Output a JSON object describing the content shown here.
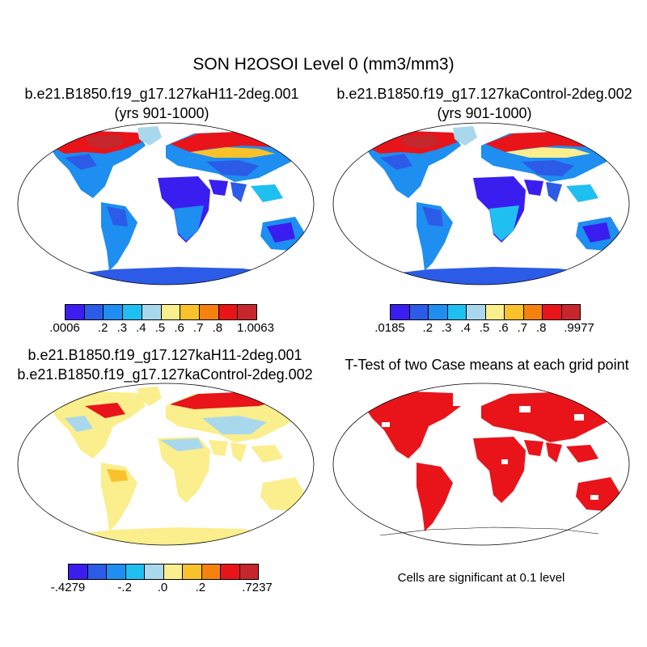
{
  "title": "SON H2OSOI Level 0 (mm3/mm3)",
  "panels": [
    {
      "title1": "b.e21.B1850.f19_g17.127kaH11-2deg.001",
      "title2": "(yrs 901-1000)"
    },
    {
      "title1": "b.e21.B1850.f19_g17.127kaControl-2deg.002",
      "title2": "(yrs 901-1000)"
    },
    {
      "title1": "b.e21.B1850.f19_g17.127kaH11-2deg.001",
      "title2": "b.e21.B1850.f19_g17.127kaControl-2deg.002"
    },
    {
      "title1": "T-Test of two Case means at each grid point",
      "title2": ""
    }
  ],
  "colorbars": [
    {
      "labels": [
        ".0006",
        ".2",
        ".3",
        ".4",
        ".5",
        ".6",
        ".7",
        ".8",
        "1.0063"
      ],
      "colors": [
        "#3a1ef0",
        "#2c5be8",
        "#1e8ef0",
        "#20bff2",
        "#a9d8ec",
        "#fbee8c",
        "#f9c22a",
        "#f5820f",
        "#e8141a",
        "#c4272c"
      ]
    },
    {
      "labels": [
        ".0185",
        ".2",
        ".3",
        ".4",
        ".5",
        ".6",
        ".7",
        ".8",
        ".9977"
      ],
      "colors": [
        "#3a1ef0",
        "#2c5be8",
        "#1e8ef0",
        "#20bff2",
        "#a9d8ec",
        "#fbee8c",
        "#f9c22a",
        "#f5820f",
        "#e8141a",
        "#c4272c"
      ]
    },
    {
      "labels": [
        "-.4279",
        "-.2",
        ".0",
        ".2",
        ".7237"
      ],
      "colors": [
        "#3a1ef0",
        "#2c5be8",
        "#1e8ef0",
        "#20bff2",
        "#a9d8ec",
        "#fbee8c",
        "#f9c22a",
        "#f5820f",
        "#e8141a",
        "#c4272c"
      ]
    }
  ],
  "significance_note": "Cells are significant at 0.1 level",
  "colors": {
    "blue": "#2c5be8",
    "deep_blue": "#3a1ef0",
    "light_blue": "#a9d8ec",
    "yellow": "#fbee8c",
    "red": "#e8141a"
  }
}
